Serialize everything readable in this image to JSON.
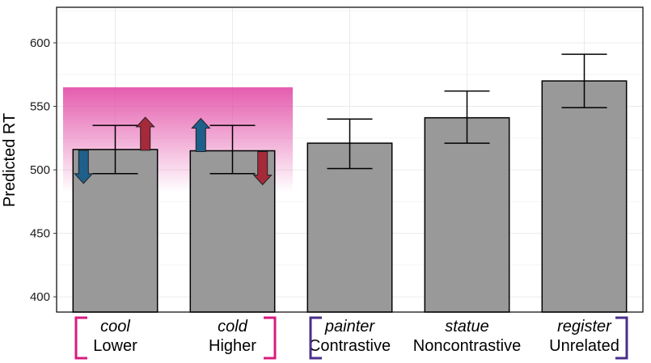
{
  "chart_data": {
    "type": "bar",
    "title": "",
    "xlabel": "",
    "ylabel": "Predicted RT",
    "ylim": [
      388,
      628
    ],
    "yticks": [
      400,
      450,
      500,
      550,
      600
    ],
    "grid": true,
    "categories": [
      {
        "word": "cool",
        "label": "Lower"
      },
      {
        "word": "cold",
        "label": "Higher"
      },
      {
        "word": "painter",
        "label": "Contrastive"
      },
      {
        "word": "statue",
        "label": "Noncontrastive"
      },
      {
        "word": "register",
        "label": "Unrelated"
      }
    ],
    "values": [
      516,
      515,
      521,
      541,
      570
    ],
    "error_low": [
      497,
      497,
      501,
      521,
      549
    ],
    "error_high": [
      535,
      535,
      540,
      562,
      591
    ],
    "highlight_band": {
      "from_category": 0,
      "to_category": 1,
      "top": 565,
      "bottom": 482,
      "color": "#e040a0"
    },
    "arrows": [
      {
        "category": 0,
        "side": "left",
        "direction": "down",
        "color": "#1f5f8b"
      },
      {
        "category": 0,
        "side": "right",
        "direction": "up",
        "color": "#a52a3a"
      },
      {
        "category": 1,
        "side": "left",
        "direction": "up",
        "color": "#1f5f8b"
      },
      {
        "category": 1,
        "side": "right",
        "direction": "down",
        "color": "#a52a3a"
      }
    ],
    "brackets": [
      {
        "from_category": 0,
        "to_category": 1,
        "color": "#d81b7f"
      },
      {
        "from_category": 2,
        "to_category": 4,
        "color": "#4a2f8a"
      }
    ],
    "colors": {
      "bar": "#999999",
      "bar_stroke": "#000000",
      "grid": "#ebebeb"
    }
  }
}
